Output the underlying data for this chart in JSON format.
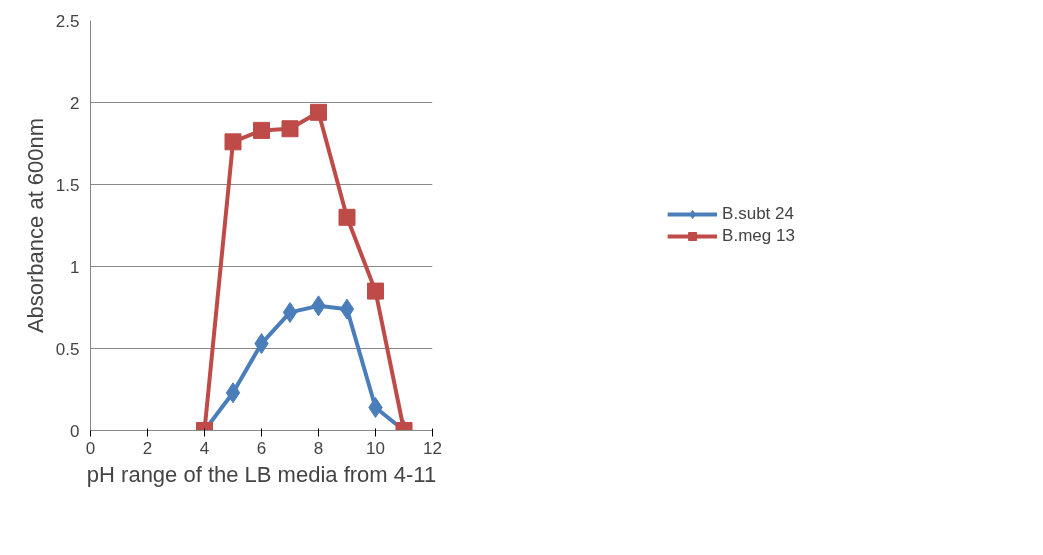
{
  "chart_data": {
    "type": "line",
    "xlabel": "pH range of the LB media from 4-11",
    "ylabel": "Absorbance at 600nm",
    "xlim": [
      0,
      12
    ],
    "xticks": [
      0,
      2,
      4,
      6,
      8,
      10,
      12
    ],
    "ylim": [
      0,
      2.5
    ],
    "yticks": [
      0,
      0.5,
      1,
      1.5,
      2,
      2.5
    ],
    "grid": "y",
    "legend": "right",
    "series": [
      {
        "name": "B.subt 24",
        "color": "#4a7ebb",
        "marker": "diamond",
        "x": [
          4,
          5,
          6,
          7,
          8,
          9,
          10,
          11
        ],
        "values": [
          0,
          0.23,
          0.53,
          0.72,
          0.76,
          0.74,
          0.14,
          0
        ]
      },
      {
        "name": "B.meg 13",
        "color": "#be4b48",
        "marker": "square",
        "x": [
          4,
          5,
          6,
          7,
          8,
          9,
          10,
          11
        ],
        "values": [
          0,
          1.76,
          1.83,
          1.84,
          1.94,
          1.3,
          0.85,
          0
        ]
      }
    ]
  }
}
